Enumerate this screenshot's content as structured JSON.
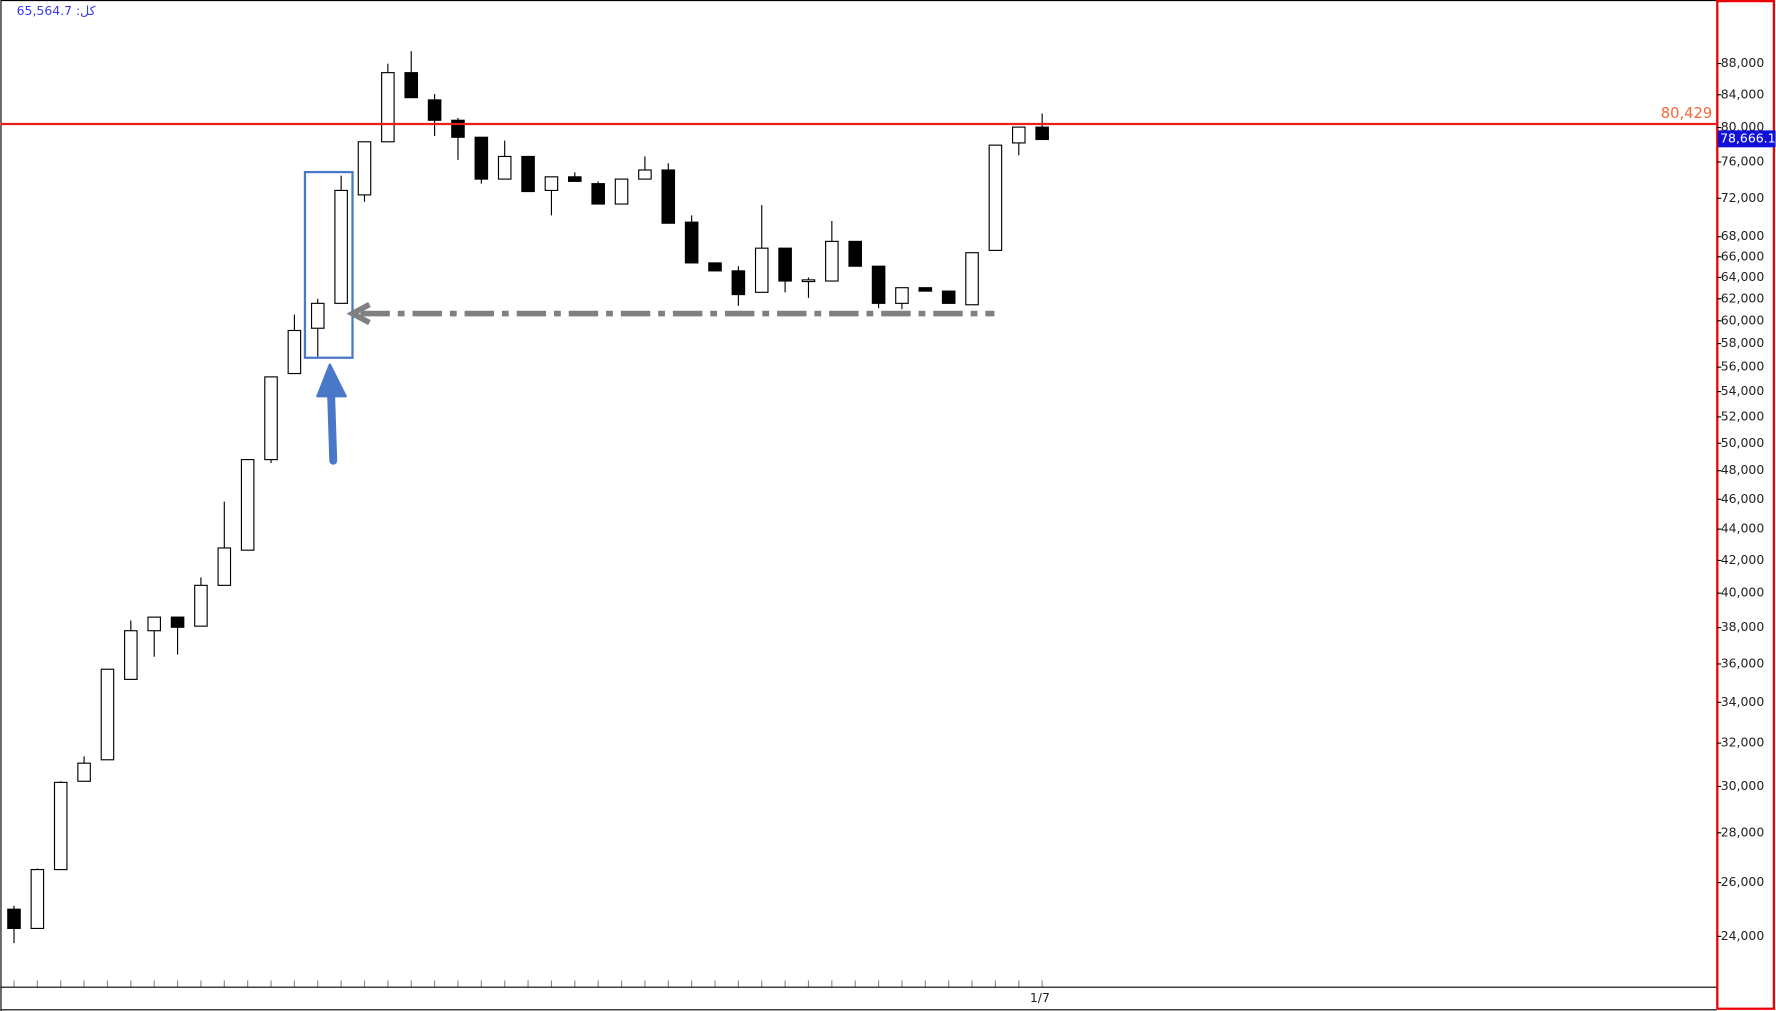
{
  "chart_data": {
    "type": "candlestick",
    "info_label": "كل: 65,564.7",
    "log_scale": true,
    "up_color": "#ffffff",
    "down_color": "#000000",
    "categories": [
      null,
      null,
      null,
      null,
      null,
      null,
      null,
      null,
      null,
      null,
      null,
      null,
      null,
      null,
      null,
      null,
      null,
      null,
      null,
      null,
      null,
      null,
      null,
      null,
      null,
      null,
      null,
      null,
      null,
      null,
      null,
      null,
      null,
      null,
      null,
      null,
      null,
      null,
      null,
      null,
      null,
      null,
      null,
      null,
      "1/7"
    ],
    "open": [
      24990,
      24285,
      26508,
      30233,
      31215,
      35184,
      37827,
      38600,
      38085,
      40470,
      42645,
      48800,
      55470,
      59340,
      61580,
      72370,
      78320,
      86810,
      83360,
      80870,
      78850,
      74090,
      76630,
      72850,
      74340,
      73590,
      71390,
      74090,
      75100,
      69490,
      65400,
      64630,
      62600,
      66850,
      63660,
      63660,
      67530,
      65080,
      61580,
      63030,
      62710,
      61450,
      66630,
      78190,
      80050
    ],
    "high": [
      25117,
      26553,
      30233,
      31374,
      35720,
      38406,
      38600,
      38600,
      40950,
      45845,
      48800,
      55195,
      60550,
      61995,
      74470,
      78320,
      87980,
      89620,
      84080,
      81150,
      78850,
      78460,
      76630,
      74340,
      74840,
      73840,
      74090,
      76630,
      75860,
      70200,
      65400,
      65080,
      71270,
      66850,
      63990,
      69610,
      67530,
      65080,
      63030,
      63030,
      62710,
      66400,
      77930,
      80050,
      81690
    ],
    "low": [
      23760,
      24285,
      26508,
      30233,
      31215,
      35184,
      36391,
      36512,
      38085,
      40470,
      42645,
      48550,
      55470,
      56890,
      61580,
      71630,
      78320,
      83640,
      78990,
      76240,
      73590,
      74090,
      72730,
      70200,
      73840,
      71390,
      71390,
      74090,
      69380,
      65400,
      64630,
      61350,
      62600,
      62600,
      62080,
      63660,
      65080,
      61140,
      61040,
      62710,
      61580,
      61450,
      66630,
      76760,
      78590
    ],
    "close": [
      24285,
      26508,
      30183,
      31058,
      35720,
      37827,
      38600,
      38021,
      40470,
      42786,
      48800,
      55195,
      59140,
      61580,
      72850,
      78320,
      86810,
      83640,
      80870,
      78850,
      74090,
      76630,
      72730,
      74340,
      73840,
      71390,
      74090,
      75100,
      69380,
      65400,
      64630,
      62390,
      66850,
      63660,
      63770,
      67530,
      65080,
      61580,
      63030,
      62710,
      61580,
      66400,
      77930,
      80050,
      78590
    ],
    "ylim": [
      22250,
      96400
    ],
    "yticks": [
      {
        "value": 24000,
        "label": "24,000"
      },
      {
        "value": 26000,
        "label": "26,000"
      },
      {
        "value": 28000,
        "label": "28,000"
      },
      {
        "value": 30000,
        "label": "30,000"
      },
      {
        "value": 32000,
        "label": "32,000"
      },
      {
        "value": 34000,
        "label": "34,000"
      },
      {
        "value": 36000,
        "label": "36,000"
      },
      {
        "value": 38000,
        "label": "38,000"
      },
      {
        "value": 40000,
        "label": "40,000"
      },
      {
        "value": 42000,
        "label": "42,000"
      },
      {
        "value": 44000,
        "label": "44,000"
      },
      {
        "value": 46000,
        "label": "46,000"
      },
      {
        "value": 48000,
        "label": "48,000"
      },
      {
        "value": 50000,
        "label": "50,000"
      },
      {
        "value": 52000,
        "label": "52,000"
      },
      {
        "value": 54000,
        "label": "54,000"
      },
      {
        "value": 56000,
        "label": "56,000"
      },
      {
        "value": 58000,
        "label": "58,000"
      },
      {
        "value": 60000,
        "label": "60,000"
      },
      {
        "value": 62000,
        "label": "62,000"
      },
      {
        "value": 64000,
        "label": "64,000"
      },
      {
        "value": 66000,
        "label": "66,000"
      },
      {
        "value": 68000,
        "label": "68,000"
      },
      {
        "value": 72000,
        "label": "72,000"
      },
      {
        "value": 76000,
        "label": "76,000"
      },
      {
        "value": 80000,
        "label": "80,000"
      },
      {
        "value": 84000,
        "label": "84,000"
      },
      {
        "value": 88000,
        "label": "88,000"
      }
    ],
    "hline": {
      "value": 80429,
      "label": "80,429",
      "color": "#e8201c"
    },
    "last_price": {
      "value": 78666.1,
      "label": "78,666.1",
      "color": "#1010d8"
    }
  }
}
